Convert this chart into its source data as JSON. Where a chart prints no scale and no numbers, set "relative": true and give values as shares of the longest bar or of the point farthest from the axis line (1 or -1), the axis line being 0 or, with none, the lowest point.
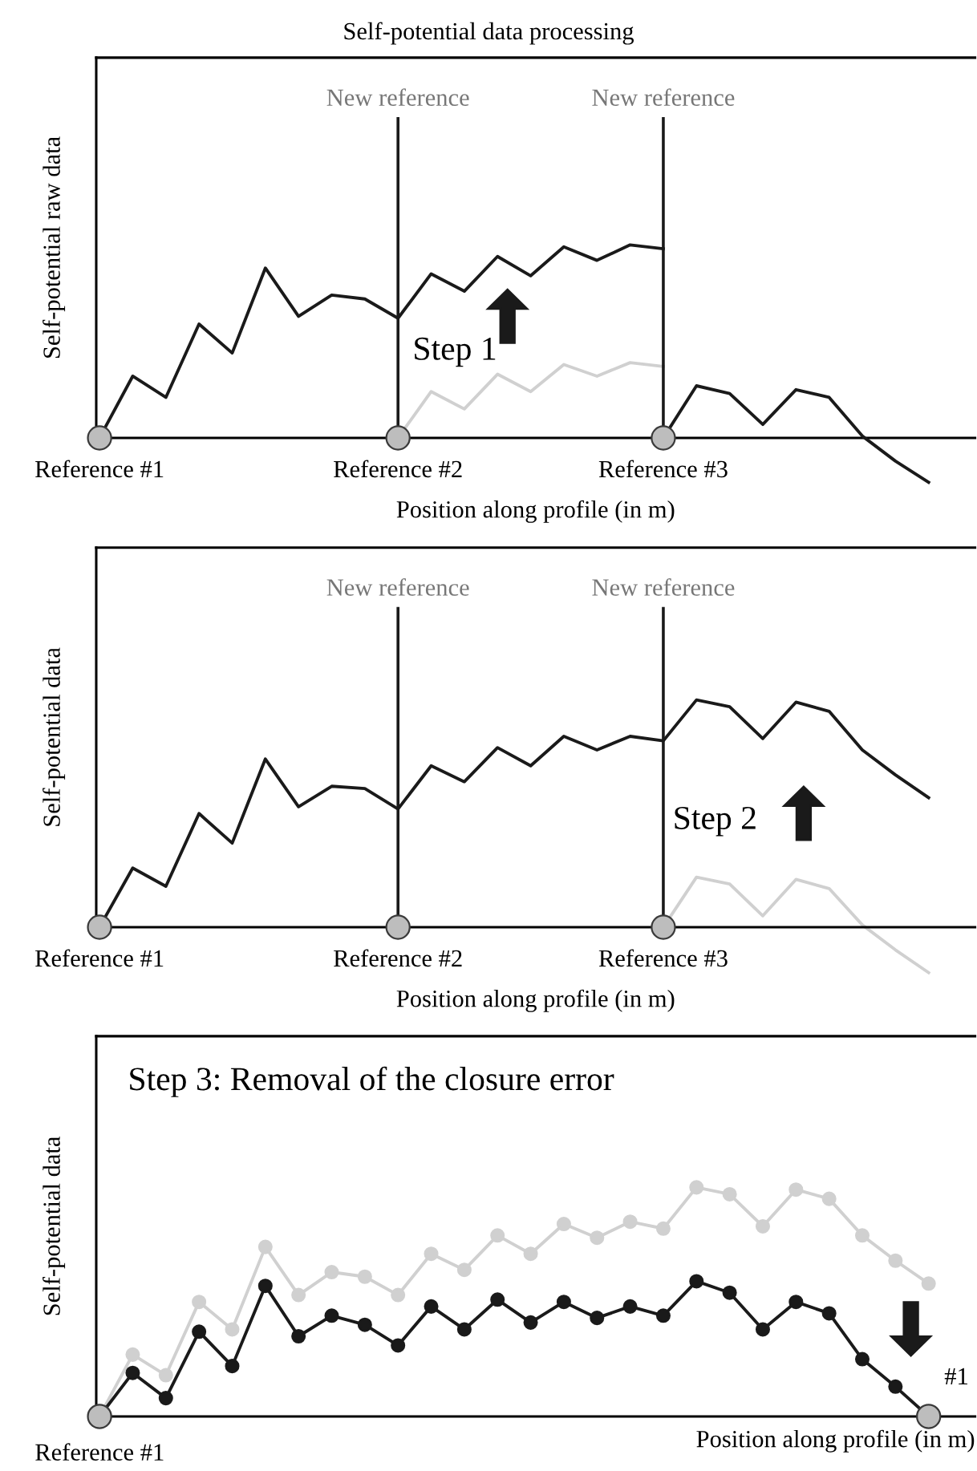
{
  "chart_data": [
    {
      "type": "line",
      "relative": true,
      "title": "Self-potential data processing",
      "xlabel": "Position along profile (in m)",
      "ylabel": "Self-potential raw data",
      "categories": [
        "Reference #1",
        null,
        null,
        null,
        null,
        null,
        null,
        null,
        null,
        "Reference #2",
        null,
        null,
        null,
        null,
        null,
        null,
        null,
        "Reference #3",
        null,
        null,
        null,
        null,
        null,
        null,
        null,
        null
      ],
      "ref_lines": [
        {
          "axis": "x",
          "value": "Reference #2",
          "label": "New reference",
          "color": "#1a1a1a"
        },
        {
          "axis": "x",
          "value": "Reference #3",
          "label": "New reference",
          "color": "#1a1a1a"
        }
      ],
      "annotations": [
        "Step 1"
      ],
      "series": [
        {
          "color": "#d0d0d0",
          "values": [
            null,
            null,
            null,
            null,
            null,
            null,
            null,
            null,
            null,
            0,
            0.24,
            0.15,
            0.33,
            0.24,
            0.38,
            0.32,
            0.39,
            0.37,
            null,
            null,
            null,
            null,
            null,
            null,
            null,
            null
          ]
        },
        {
          "color": "#1a1a1a",
          "values": [
            0,
            0.32,
            0.21,
            0.59,
            0.44,
            0.88,
            0.63,
            0.74,
            0.72,
            0.62,
            0.85,
            0.76,
            0.94,
            0.84,
            0.99,
            0.92,
            1,
            0.98,
            null,
            null,
            null,
            null,
            null,
            null,
            null,
            null
          ]
        },
        {
          "color": "#1a1a1a",
          "values": [
            null,
            null,
            null,
            null,
            null,
            null,
            null,
            null,
            null,
            null,
            null,
            null,
            null,
            null,
            null,
            null,
            null,
            0,
            0.27,
            0.23,
            0.07,
            0.25,
            0.21,
            0.01,
            -0.12,
            -0.23
          ]
        },
        {
          "type": "scatter",
          "color": "#bdbdbd",
          "values": [
            0,
            null,
            null,
            null,
            null,
            null,
            null,
            null,
            null,
            0,
            null,
            null,
            null,
            null,
            null,
            null,
            null,
            0,
            null,
            null,
            null,
            null,
            null,
            null,
            null,
            null
          ]
        }
      ]
    },
    {
      "type": "line",
      "relative": true,
      "xlabel": "Position along profile (in m)",
      "ylabel": "Self-potential data",
      "categories": [
        "Reference #1",
        null,
        null,
        null,
        null,
        null,
        null,
        null,
        null,
        "Reference #2",
        null,
        null,
        null,
        null,
        null,
        null,
        null,
        "Reference #3",
        null,
        null,
        null,
        null,
        null,
        null,
        null,
        null
      ],
      "ref_lines": [
        {
          "axis": "x",
          "value": "Reference #2",
          "label": "New reference",
          "color": "#1a1a1a"
        },
        {
          "axis": "x",
          "value": "Reference #3",
          "label": "New reference",
          "color": "#1a1a1a"
        }
      ],
      "annotations": [
        "Step 2"
      ],
      "series": [
        {
          "color": "#d0d0d0",
          "values": [
            null,
            null,
            null,
            null,
            null,
            null,
            null,
            null,
            null,
            null,
            null,
            null,
            null,
            null,
            null,
            null,
            null,
            0,
            0.22,
            0.19,
            0.05,
            0.21,
            0.17,
            0.01,
            -0.1,
            -0.2
          ]
        },
        {
          "color": "#1a1a1a",
          "values": [
            0,
            0.26,
            0.18,
            0.5,
            0.37,
            0.74,
            0.53,
            0.62,
            0.61,
            0.52,
            0.71,
            0.64,
            0.79,
            0.71,
            0.84,
            0.78,
            0.84,
            0.82,
            1,
            0.97,
            0.83,
            0.99,
            0.95,
            0.78,
            0.67,
            0.57
          ]
        },
        {
          "type": "scatter",
          "color": "#bdbdbd",
          "values": [
            0,
            null,
            null,
            null,
            null,
            null,
            null,
            null,
            null,
            0,
            null,
            null,
            null,
            null,
            null,
            null,
            null,
            0,
            null,
            null,
            null,
            null,
            null,
            null,
            null,
            null
          ]
        }
      ]
    },
    {
      "type": "line",
      "relative": true,
      "marker": "circle",
      "xlabel": "Position along profile (in m)",
      "ylabel": "Self-potential data",
      "categories": [
        null,
        null,
        null,
        null,
        null,
        null,
        null,
        null,
        null,
        null,
        null,
        null,
        null,
        null,
        null,
        null,
        null,
        null,
        null,
        null,
        null,
        null,
        null,
        null,
        null,
        null
      ],
      "annotations": [
        "Step 3: Removal of the closure error",
        "#1",
        "Reference #1"
      ],
      "series": [
        {
          "color": "#d0d0d0",
          "values": [
            0,
            0.27,
            0.18,
            0.5,
            0.38,
            0.74,
            0.53,
            0.63,
            0.61,
            0.53,
            0.71,
            0.64,
            0.79,
            0.71,
            0.84,
            0.78,
            0.85,
            0.82,
            1,
            0.97,
            0.83,
            0.99,
            0.95,
            0.79,
            0.68,
            0.58
          ]
        },
        {
          "color": "#1a1a1a",
          "values": [
            0,
            0.19,
            0.08,
            0.37,
            0.22,
            0.57,
            0.35,
            0.44,
            0.4,
            0.31,
            0.48,
            0.38,
            0.51,
            0.41,
            0.5,
            0.43,
            0.48,
            0.44,
            0.59,
            0.54,
            0.38,
            0.5,
            0.45,
            0.25,
            0.13,
            0
          ]
        },
        {
          "type": "scatter",
          "color": "#bdbdbd",
          "values": [
            0,
            null,
            null,
            null,
            null,
            null,
            null,
            null,
            null,
            null,
            null,
            null,
            null,
            null,
            null,
            null,
            null,
            null,
            null,
            null,
            null,
            null,
            null,
            null,
            null,
            0
          ]
        }
      ]
    }
  ]
}
